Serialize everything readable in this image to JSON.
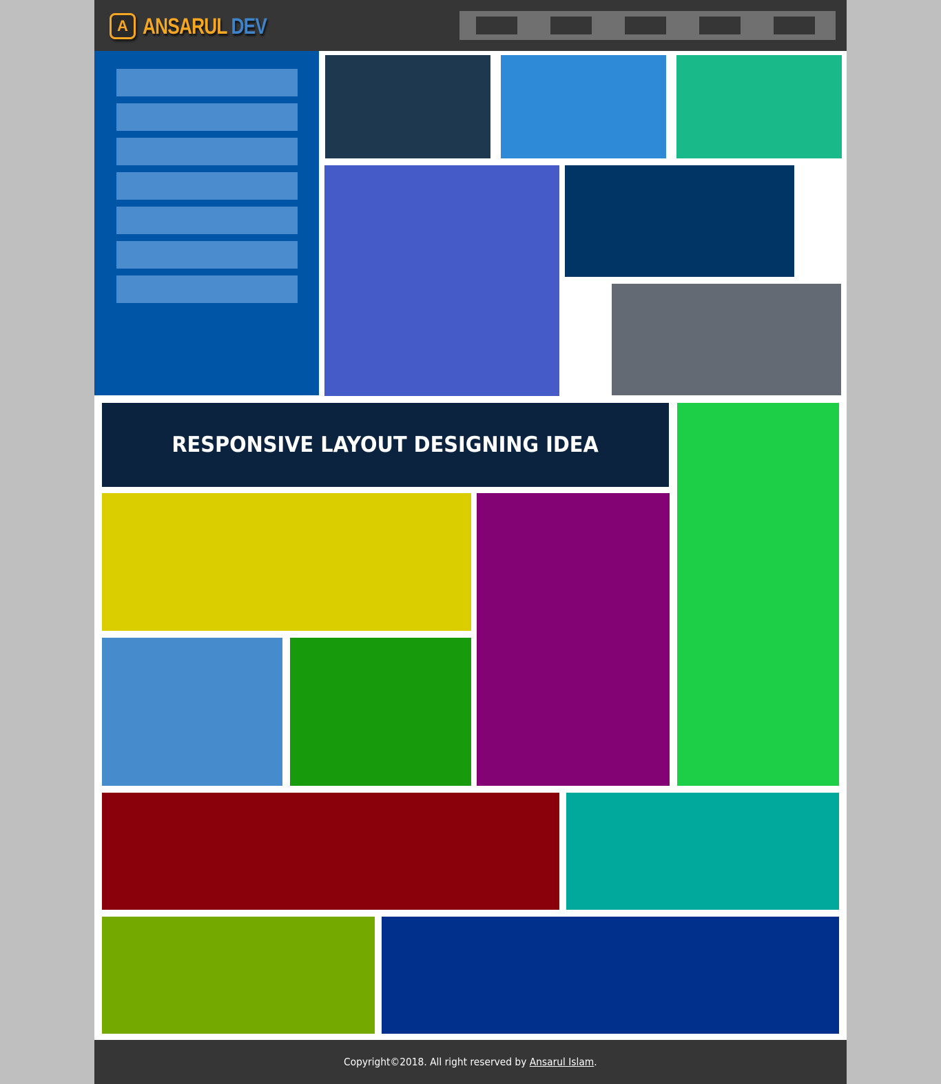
{
  "header": {
    "logo_letter": "A",
    "brand_primary": "ANSARUL",
    "brand_secondary": "DEV",
    "nav_item_count_visible": 5
  },
  "colors": {
    "page_background": "#bfbfbf",
    "header_background": "#363636",
    "nav_background": "#707070",
    "nav_item": "#363636",
    "sidebar": "#0055a7",
    "sidebar_item": "#4a8ccd",
    "logo_orange": "#f5a623",
    "logo_blue": "#3f83c9",
    "banner": "#0b233e",
    "footer_background": "#363636",
    "blocks": {
      "top_row_1": "#1e3850",
      "top_row_2": "#2e89d6",
      "top_row_3": "#19b98a",
      "purple_blue_large": "#455cc8",
      "navy_top_right": "#003565",
      "slate_bottom_right": "#646a74",
      "green_tall": "#1dcf46",
      "yellow": "#dacd00",
      "purple": "#830375",
      "light_blue": "#468bcb",
      "green": "#179b0c",
      "dark_red": "#8a000b",
      "teal": "#00a99c",
      "olive_green": "#74a900",
      "royal_blue": "#00308c"
    }
  },
  "main": {
    "banner_title": "RESPONSIVE LAYOUT DESIGNING IDEA"
  },
  "footer": {
    "prefix": "Copyright©2018. All right reserved by ",
    "author_link": "Ansarul Islam",
    "suffix": "."
  }
}
